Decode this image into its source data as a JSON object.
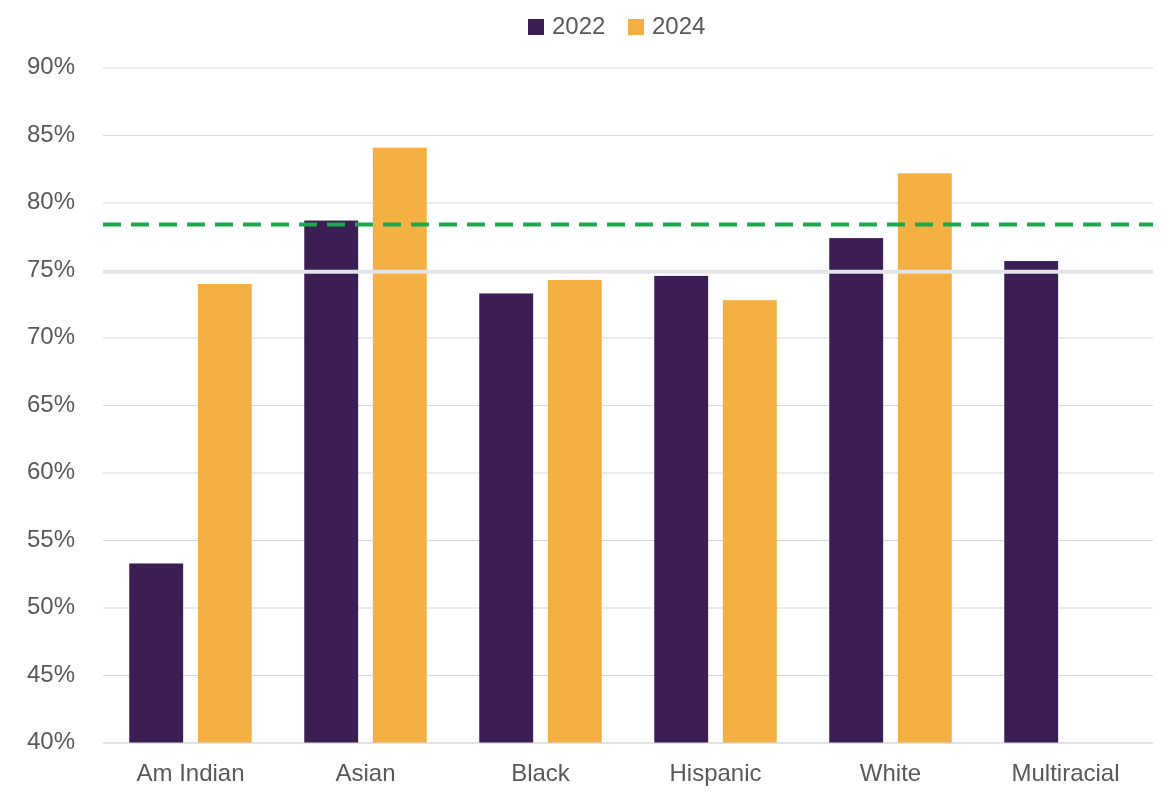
{
  "chart_data": {
    "type": "bar",
    "categories": [
      "Am Indian",
      "Asian",
      "Black",
      "Hispanic",
      "White",
      "Multiracial"
    ],
    "series": [
      {
        "name": "2022",
        "color": "#3b1f54",
        "values": [
          53.3,
          78.7,
          73.3,
          74.6,
          77.4,
          75.7
        ]
      },
      {
        "name": "2024",
        "color": "#f4b042",
        "values": [
          74.0,
          84.1,
          74.3,
          72.8,
          82.2,
          null
        ]
      }
    ],
    "ylim": [
      40,
      90
    ],
    "yticks": [
      {
        "value": 40,
        "label": "40%"
      },
      {
        "value": 45,
        "label": "45%"
      },
      {
        "value": 50,
        "label": "50%"
      },
      {
        "value": 55,
        "label": "55%"
      },
      {
        "value": 60,
        "label": "60%"
      },
      {
        "value": 65,
        "label": "65%"
      },
      {
        "value": 70,
        "label": "70%"
      },
      {
        "value": 75,
        "label": "75%"
      },
      {
        "value": 80,
        "label": "80%"
      },
      {
        "value": 85,
        "label": "85%"
      },
      {
        "value": 90,
        "label": "90%"
      }
    ],
    "ref_lines": [
      {
        "axis": "y",
        "value": 78.4,
        "color": "#1aaa4a",
        "line_style": "dashed"
      },
      {
        "axis": "y",
        "value": 74.9,
        "color": "#e3e3ea",
        "line_style": "solid"
      }
    ],
    "grid": "y",
    "legend": "top"
  }
}
